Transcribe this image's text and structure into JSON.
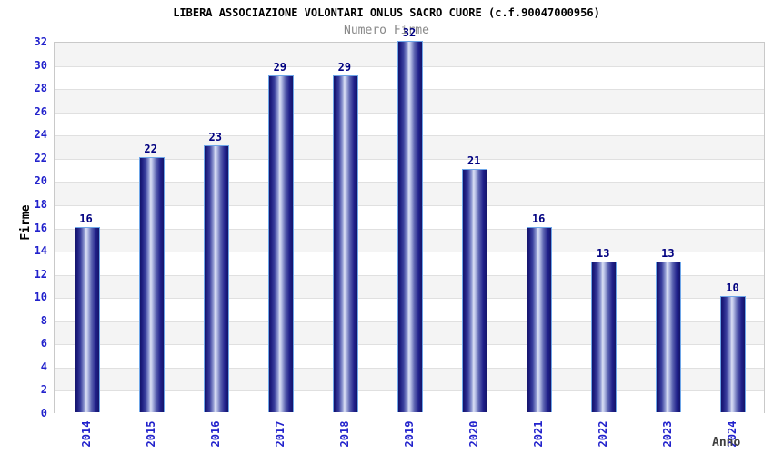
{
  "chart_data": {
    "type": "bar",
    "title": "LIBERA ASSOCIAZIONE VOLONTARI ONLUS SACRO CUORE (c.f.90047000956)",
    "subtitle": "Numero Firme",
    "xlabel": "Anno",
    "ylabel": "Firme",
    "categories": [
      "2014",
      "2015",
      "2016",
      "2017",
      "2018",
      "2019",
      "2020",
      "2021",
      "2022",
      "2023",
      "2024"
    ],
    "values": [
      16,
      22,
      23,
      29,
      29,
      32,
      21,
      16,
      13,
      13,
      10
    ],
    "ylim": [
      0,
      32
    ],
    "ytick_step": 2,
    "grid": "horizontal-bands-alternating",
    "legend": "none",
    "colors": {
      "axis_text": "#2222cc",
      "value_label": "#000080",
      "title": "#000000",
      "subtitle": "#888888",
      "xlabel_color": "#404040",
      "ylabel_color": "#000000",
      "band_gray": "#f4f4f4",
      "grid_line": "#e0e0e0",
      "plot_border": "#c9c9c9",
      "bar_border": "#6ea6e8",
      "bar_dark": "#14146a",
      "bar_light": "#dbe0f4",
      "background": "#ffffff"
    }
  }
}
